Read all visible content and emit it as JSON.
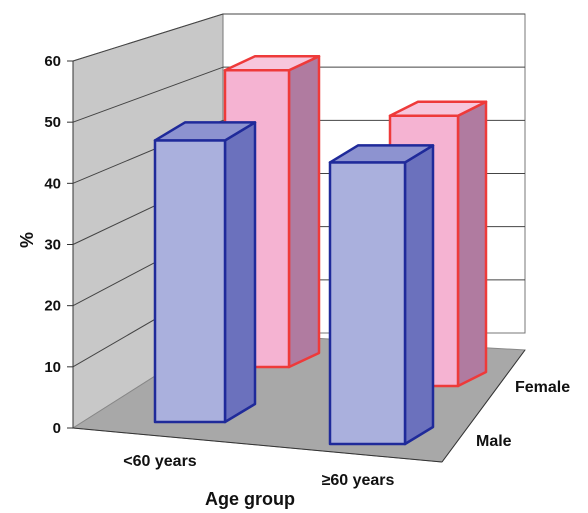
{
  "chart_data": {
    "type": "bar",
    "categories": [
      "<60 years",
      "≥60 years"
    ],
    "series": [
      {
        "name": "Male",
        "values": [
          44,
          44
        ],
        "color": "#aab0dd",
        "edge": "#1f2a9a"
      },
      {
        "name": "Female",
        "values": [
          56,
          51
        ],
        "color": "#f5b3d2",
        "edge": "#ee3a3a"
      }
    ],
    "title": "",
    "xlabel": "Age group",
    "ylabel": "%",
    "ylim": [
      0,
      60
    ],
    "yticks": [
      0,
      10,
      20,
      30,
      40,
      50,
      60
    ],
    "grid": true,
    "projection": "3d"
  }
}
